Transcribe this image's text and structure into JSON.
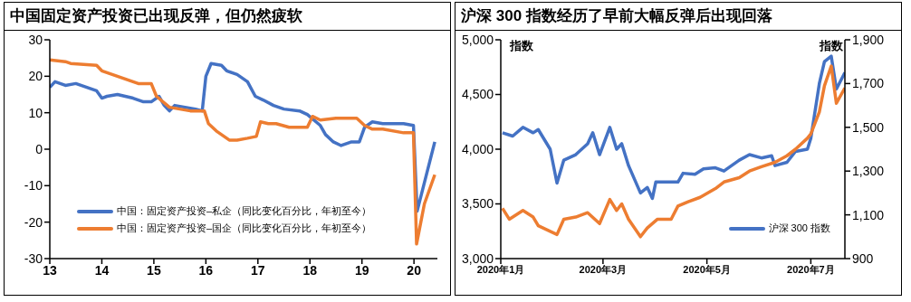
{
  "chart_data": [
    {
      "type": "line",
      "title": "中国固定资产投资已出现反弹，但仍然疲软",
      "xlim": [
        13,
        20.45
      ],
      "xticks": [
        13,
        14,
        15,
        16,
        17,
        18,
        19,
        20
      ],
      "ylim": [
        -30,
        30
      ],
      "yticks": [
        -30,
        -20,
        -10,
        0,
        10,
        20,
        30
      ],
      "legend": "bottom left",
      "series": [
        {
          "name": "中国：固定资产投资–私企（同比变化百分比，年初至今）",
          "color": "#4472c4",
          "x": [
            13,
            13.1,
            13.3,
            13.5,
            13.9,
            14.0,
            14.1,
            14.3,
            14.6,
            14.8,
            14.95,
            15.1,
            15.2,
            15.3,
            15.4,
            15.6,
            15.8,
            15.93,
            16.0,
            16.1,
            16.3,
            16.4,
            16.6,
            16.8,
            16.95,
            17.1,
            17.3,
            17.5,
            17.8,
            17.95,
            18.2,
            18.3,
            18.45,
            18.6,
            18.8,
            18.95,
            19.05,
            19.2,
            19.4,
            19.6,
            19.8,
            19.99,
            20.06,
            20.4
          ],
          "values": [
            17,
            18.5,
            17.5,
            18,
            16,
            14,
            14.5,
            15,
            14,
            13,
            13,
            14.5,
            12,
            10.5,
            12,
            11.5,
            11,
            10.5,
            20,
            23.5,
            23,
            21.5,
            20.5,
            18.5,
            14.5,
            13.5,
            12,
            11,
            10.5,
            9.5,
            6.5,
            4,
            2,
            1,
            2,
            2,
            6,
            7.5,
            7,
            7,
            7,
            6.5,
            -17,
            2
          ]
        },
        {
          "name": "中国：固定资产投资–国企（同比变化百分比，年初至今）",
          "color": "#ed7d31",
          "x": [
            13,
            13.3,
            13.4,
            13.9,
            14.0,
            14.3,
            14.5,
            14.7,
            14.95,
            15.05,
            15.3,
            15.5,
            15.7,
            15.97,
            16.05,
            16.2,
            16.45,
            16.6,
            16.8,
            16.97,
            17.05,
            17.2,
            17.35,
            17.6,
            17.8,
            17.95,
            18.05,
            18.2,
            18.5,
            18.9,
            19.05,
            19.2,
            19.4,
            19.8,
            19.99,
            20.05,
            20.2,
            20.4
          ],
          "values": [
            24.5,
            24,
            23.5,
            23,
            21.5,
            20,
            19,
            18,
            18,
            14.5,
            11.5,
            11,
            10.5,
            10.5,
            7,
            5,
            2.5,
            2.5,
            3,
            3.5,
            7.5,
            7,
            7,
            6,
            6,
            6,
            9,
            8,
            8.5,
            8.5,
            6.5,
            5.5,
            5.5,
            4.5,
            4.5,
            -26,
            -15,
            -7
          ]
        }
      ]
    },
    {
      "type": "line",
      "title": "沪深 300 指数经历了早前大幅反弹后出现回落",
      "ylabel": "指数",
      "y2label": "指数",
      "xlim": [
        "2020-01-01",
        "2020-07-21"
      ],
      "xticks": [
        {
          "value": "2020-01-01",
          "label": "2020年1月"
        },
        {
          "value": "2020-03-01",
          "label": "2020年3月"
        },
        {
          "value": "2020-05-01",
          "label": "2020年5月"
        },
        {
          "value": "2020-07-01",
          "label": "2020年7月"
        }
      ],
      "ylim": [
        3000,
        5000
      ],
      "yticks": [
        {
          "value": 3000,
          "label": "3,000"
        },
        {
          "value": 3500,
          "label": "3,500"
        },
        {
          "value": 4000,
          "label": "4,000"
        },
        {
          "value": 4500,
          "label": "4,500"
        },
        {
          "value": 5000,
          "label": "5,000"
        }
      ],
      "y2lim": [
        900,
        1900
      ],
      "y2ticks": [
        {
          "value": 900,
          "label": "900"
        },
        {
          "value": 1100,
          "label": "1,100"
        },
        {
          "value": 1300,
          "label": "1,300"
        },
        {
          "value": 1500,
          "label": "1,500"
        },
        {
          "value": 1700,
          "label": "1,700"
        },
        {
          "value": 1900,
          "label": "1,900"
        }
      ],
      "legend": "bottom right",
      "series": [
        {
          "name": "沪深 300 指数",
          "color": "#4472c4",
          "x": [
            "2020-01-02",
            "2020-01-08",
            "2020-01-14",
            "2020-01-20",
            "2020-01-23",
            "2020-01-30",
            "2020-02-03",
            "2020-02-07",
            "2020-02-14",
            "2020-02-21",
            "2020-02-24",
            "2020-02-28",
            "2020-03-05",
            "2020-03-09",
            "2020-03-12",
            "2020-03-16",
            "2020-03-23",
            "2020-03-27",
            "2020-03-30",
            "2020-04-01",
            "2020-04-10",
            "2020-04-14",
            "2020-04-17",
            "2020-04-24",
            "2020-04-29",
            "2020-05-06",
            "2020-05-11",
            "2020-05-20",
            "2020-05-26",
            "2020-06-02",
            "2020-06-08",
            "2020-06-10",
            "2020-06-17",
            "2020-06-22",
            "2020-06-29",
            "2020-07-01",
            "2020-07-06",
            "2020-07-09",
            "2020-07-13",
            "2020-07-16",
            "2020-07-21"
          ],
          "values": [
            4150,
            4120,
            4200,
            4150,
            4180,
            4000,
            3690,
            3900,
            3950,
            4050,
            4150,
            3950,
            4200,
            4000,
            4050,
            3850,
            3600,
            3650,
            3550,
            3700,
            3700,
            3700,
            3780,
            3770,
            3820,
            3830,
            3800,
            3900,
            3950,
            3920,
            3940,
            3850,
            3880,
            3980,
            4000,
            4100,
            4600,
            4800,
            4850,
            4550,
            4700
          ]
        },
        {
          "color": "#ed7d31",
          "axis": "y2",
          "x": [
            "2020-01-02",
            "2020-01-06",
            "2020-01-14",
            "2020-01-20",
            "2020-01-23",
            "2020-02-03",
            "2020-02-07",
            "2020-02-14",
            "2020-02-21",
            "2020-02-28",
            "2020-03-05",
            "2020-03-09",
            "2020-03-12",
            "2020-03-16",
            "2020-03-23",
            "2020-03-27",
            "2020-04-02",
            "2020-04-10",
            "2020-04-14",
            "2020-04-20",
            "2020-04-27",
            "2020-05-06",
            "2020-05-11",
            "2020-05-20",
            "2020-05-26",
            "2020-06-02",
            "2020-06-10",
            "2020-06-17",
            "2020-06-22",
            "2020-06-29",
            "2020-07-01",
            "2020-07-06",
            "2020-07-09",
            "2020-07-13",
            "2020-07-16",
            "2020-07-21"
          ],
          "values": [
            1130,
            1080,
            1120,
            1090,
            1050,
            1010,
            1080,
            1090,
            1110,
            1060,
            1170,
            1120,
            1150,
            1080,
            1000,
            1040,
            1080,
            1080,
            1140,
            1160,
            1180,
            1220,
            1250,
            1270,
            1300,
            1320,
            1340,
            1370,
            1400,
            1450,
            1470,
            1570,
            1690,
            1780,
            1610,
            1680
          ]
        }
      ]
    }
  ]
}
